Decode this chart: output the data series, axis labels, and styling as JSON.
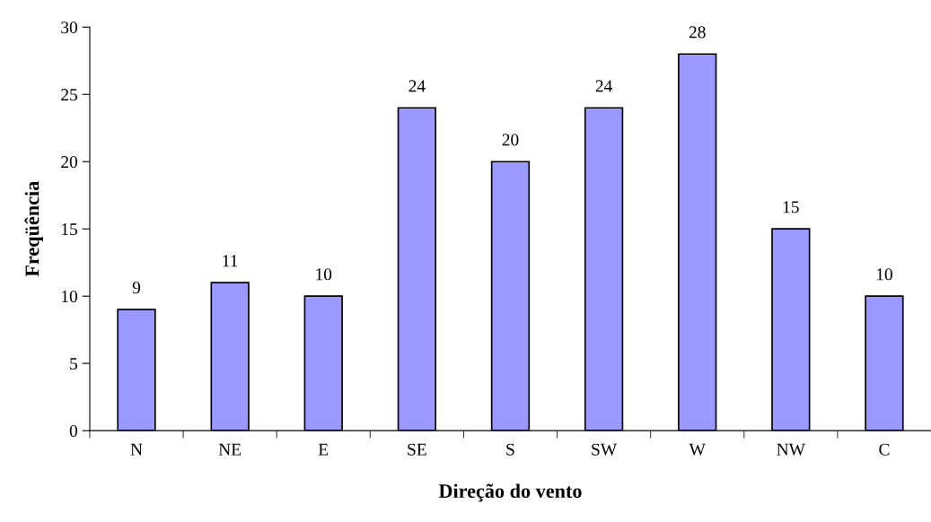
{
  "chart_data": {
    "type": "bar",
    "xlabel": "Direção do vento",
    "ylabel": "Freqüência",
    "categories": [
      "N",
      "NE",
      "E",
      "SE",
      "S",
      "SW",
      "W",
      "NW",
      "C"
    ],
    "values": [
      9,
      11,
      10,
      24,
      20,
      24,
      28,
      15,
      10
    ],
    "color": "#9999ff",
    "ylim": [
      0,
      30
    ],
    "yticks": [
      0,
      5,
      10,
      15,
      20,
      25,
      30
    ],
    "grid": false,
    "legend": false,
    "data_labels": true
  }
}
